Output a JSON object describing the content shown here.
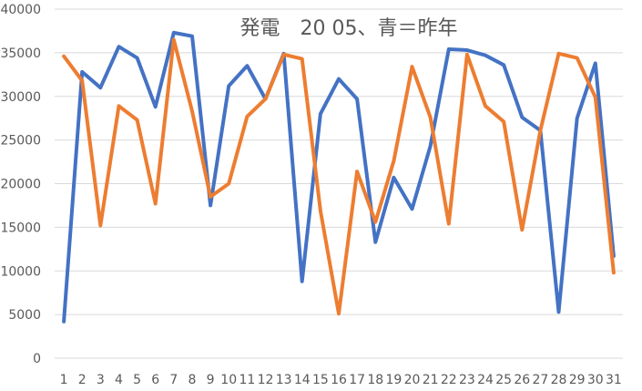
{
  "chart_data": {
    "type": "line",
    "title": "発電　20 05、青＝昨年",
    "xlabel": "",
    "ylabel": "",
    "categories": [
      "1",
      "2",
      "3",
      "4",
      "5",
      "6",
      "7",
      "8",
      "9",
      "10",
      "11",
      "12",
      "13",
      "14",
      "15",
      "16",
      "17",
      "18",
      "19",
      "20",
      "21",
      "22",
      "23",
      "24",
      "25",
      "26",
      "27",
      "28",
      "29",
      "30",
      "31"
    ],
    "ylim": [
      0,
      40000
    ],
    "yticks": [
      "0",
      "5000",
      "10000",
      "15000",
      "20000",
      "25000",
      "30000",
      "35000",
      "40000"
    ],
    "grid": true,
    "legend": "none",
    "series": [
      {
        "color": "#4472c4",
        "values": [
          4200,
          32800,
          31000,
          35700,
          34400,
          28800,
          37300,
          36900,
          17500,
          31200,
          33500,
          29700,
          34900,
          8800,
          28000,
          32000,
          29700,
          13300,
          20700,
          17100,
          24300,
          35400,
          35300,
          34700,
          33600,
          27600,
          26100,
          5300,
          27500,
          33800,
          11700
        ]
      },
      {
        "color": "#ed7d31",
        "values": [
          34600,
          31800,
          15200,
          28900,
          27300,
          17700,
          36500,
          28300,
          18500,
          20000,
          27700,
          29700,
          34800,
          34300,
          16900,
          5100,
          21400,
          15600,
          22600,
          33400,
          27600,
          15400,
          34800,
          28900,
          27100,
          14700,
          26100,
          34900,
          34400,
          29900,
          9800
        ]
      }
    ]
  }
}
